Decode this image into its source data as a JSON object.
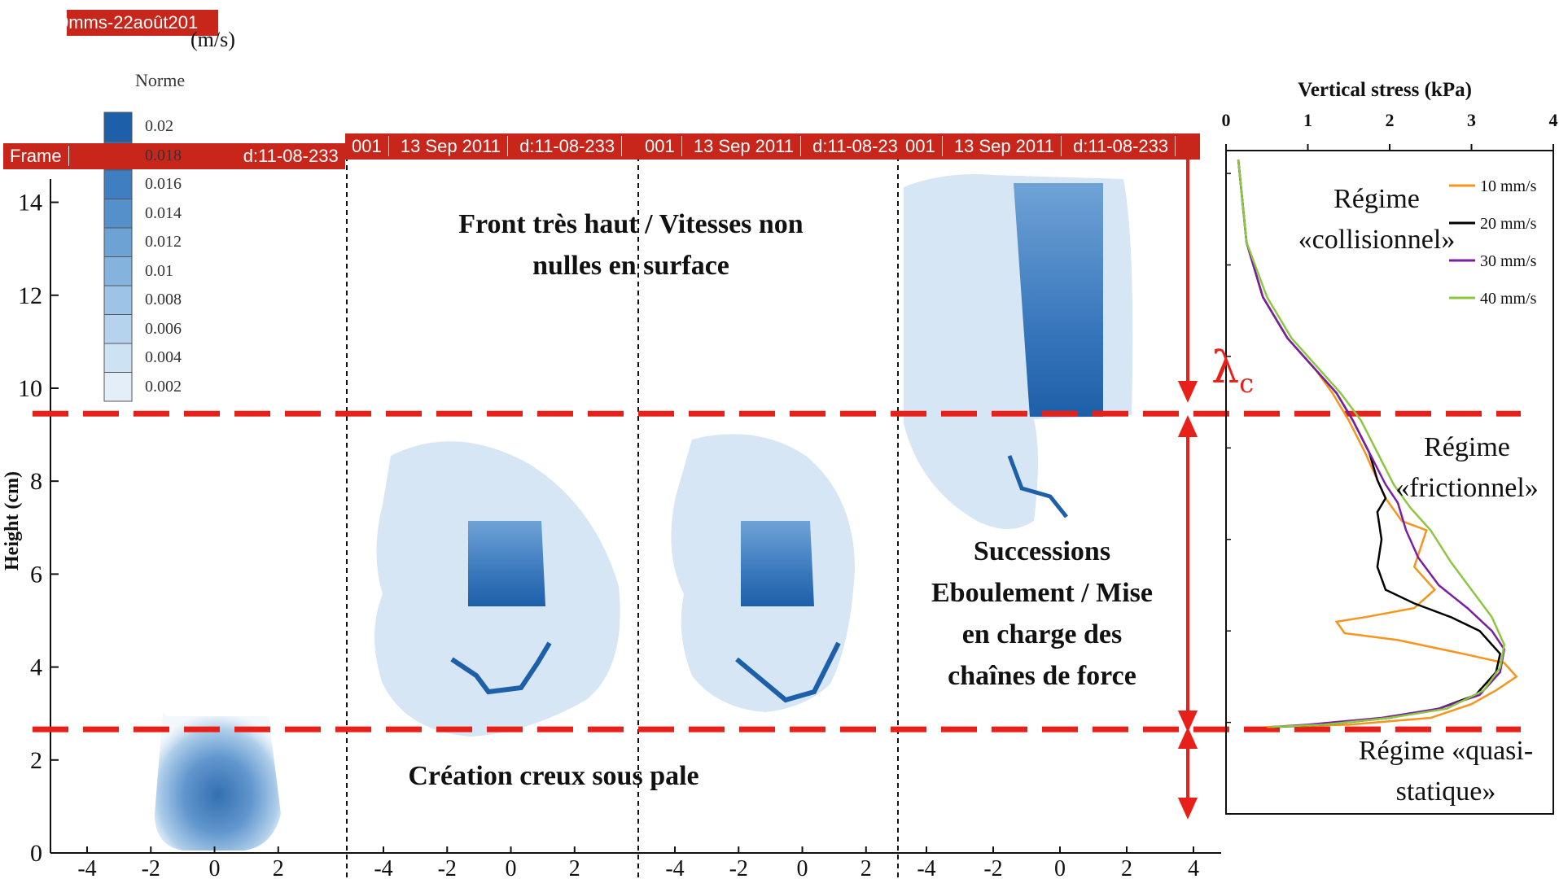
{
  "header": {
    "top_banner": "0mms-22août201",
    "unit": "(m/s)",
    "frame_banner_left": [
      "Frame",
      "d:11-08-233"
    ],
    "frame_banner_right": [
      "001",
      "13 Sep 2011",
      "d:11-08-233"
    ]
  },
  "colorbar": {
    "title": "Norme",
    "labels": [
      "0.02",
      "0.018",
      "0.016",
      "0.014",
      "0.012",
      "0.01",
      "0.008",
      "0.006",
      "0.004",
      "0.002"
    ],
    "colors": [
      "#1d5fa8",
      "#2e6fb5",
      "#3f7ec0",
      "#5590ca",
      "#6ca2d4",
      "#84b4dd",
      "#9dc4e5",
      "#b5d3ec",
      "#cde2f3",
      "#e3eef9"
    ]
  },
  "annotations": {
    "top": "Front très haut / Vitesses non nulles en surface",
    "middle": "Successions Eboulement / Mise en charge des chaînes de force",
    "bottom": "Création creux sous pale",
    "lambda": "λ",
    "lambda_sub": "c"
  },
  "regimes": {
    "collisional": "Régime «collisionnel»",
    "frictional": "Régime «frictionnel»",
    "quasi_static": "Régime «quasi-statique»"
  },
  "colors": {
    "red": "#e8201a",
    "blue_dark": "#1d5fa8",
    "blue_light": "#cfe2f3",
    "orange": "#f7941d",
    "black": "#000000",
    "purple": "#7b1fa2",
    "green": "#8dc63f"
  },
  "chart_data": [
    {
      "type": "heatmap",
      "ylabel": "Height (cm)",
      "ylim": [
        0,
        14.5
      ],
      "yticks": [
        "0",
        "2",
        "4",
        "6",
        "8",
        "10",
        "12",
        "14"
      ],
      "panel_xticks": [
        [
          "-4",
          "-2",
          "0",
          "2"
        ],
        [
          "-4",
          "-2",
          "0",
          "2"
        ],
        [
          "-4",
          "-2",
          "0",
          "2"
        ],
        [
          "-4",
          "-2",
          "0",
          "2",
          "4"
        ]
      ],
      "threshold_heights_cm": [
        9.4,
        2.8
      ]
    },
    {
      "type": "line",
      "xlabel": "Vertical stress (kPa)",
      "xlim": [
        0,
        4
      ],
      "xticks": [
        "0",
        "1",
        "2",
        "3",
        "4"
      ],
      "ylim": [
        0,
        14.5
      ],
      "legend_position": "top-right",
      "series": [
        {
          "name": "10 mm/s",
          "color": "#f7941d",
          "points": [
            [
              0.15,
              14.3
            ],
            [
              0.25,
              12.5
            ],
            [
              0.45,
              11.3
            ],
            [
              0.75,
              10.4
            ],
            [
              1.1,
              9.7
            ],
            [
              1.3,
              9.2
            ],
            [
              1.5,
              8.6
            ],
            [
              1.7,
              7.9
            ],
            [
              1.85,
              7.3
            ],
            [
              1.95,
              6.9
            ],
            [
              2.15,
              6.4
            ],
            [
              2.45,
              6.2
            ],
            [
              2.3,
              5.4
            ],
            [
              2.55,
              4.9
            ],
            [
              2.3,
              4.5
            ],
            [
              1.7,
              4.3
            ],
            [
              1.35,
              4.2
            ],
            [
              1.45,
              3.95
            ],
            [
              2.1,
              3.8
            ],
            [
              2.9,
              3.5
            ],
            [
              3.4,
              3.3
            ],
            [
              3.55,
              3.0
            ],
            [
              3.3,
              2.7
            ],
            [
              3.0,
              2.4
            ],
            [
              2.5,
              2.1
            ],
            [
              1.5,
              1.95
            ],
            [
              0.5,
              1.9
            ]
          ]
        },
        {
          "name": "20 mm/s",
          "color": "#000000",
          "points": [
            [
              0.15,
              14.3
            ],
            [
              0.25,
              12.5
            ],
            [
              0.45,
              11.3
            ],
            [
              0.75,
              10.4
            ],
            [
              1.1,
              9.7
            ],
            [
              1.35,
              9.2
            ],
            [
              1.55,
              8.6
            ],
            [
              1.75,
              7.9
            ],
            [
              1.85,
              7.3
            ],
            [
              1.95,
              6.9
            ],
            [
              1.85,
              6.6
            ],
            [
              1.9,
              6.0
            ],
            [
              1.85,
              5.4
            ],
            [
              1.95,
              4.9
            ],
            [
              2.3,
              4.6
            ],
            [
              2.75,
              4.3
            ],
            [
              3.1,
              4.0
            ],
            [
              3.35,
              3.5
            ],
            [
              3.3,
              3.1
            ],
            [
              3.05,
              2.6
            ],
            [
              2.6,
              2.3
            ],
            [
              2.0,
              2.1
            ],
            [
              1.2,
              1.95
            ],
            [
              0.6,
              1.9
            ]
          ]
        },
        {
          "name": "30 mm/s",
          "color": "#7b1fa2",
          "points": [
            [
              0.15,
              14.3
            ],
            [
              0.25,
              12.5
            ],
            [
              0.45,
              11.3
            ],
            [
              0.75,
              10.4
            ],
            [
              1.1,
              9.7
            ],
            [
              1.35,
              9.2
            ],
            [
              1.55,
              8.6
            ],
            [
              1.75,
              7.9
            ],
            [
              1.95,
              7.2
            ],
            [
              2.1,
              6.8
            ],
            [
              2.2,
              6.2
            ],
            [
              2.35,
              5.6
            ],
            [
              2.6,
              5.0
            ],
            [
              2.95,
              4.5
            ],
            [
              3.25,
              4.0
            ],
            [
              3.4,
              3.6
            ],
            [
              3.35,
              3.1
            ],
            [
              3.1,
              2.6
            ],
            [
              2.6,
              2.3
            ],
            [
              1.9,
              2.1
            ],
            [
              1.0,
              1.95
            ],
            [
              0.55,
              1.9
            ]
          ]
        },
        {
          "name": "40 mm/s",
          "color": "#8dc63f",
          "points": [
            [
              0.15,
              14.3
            ],
            [
              0.25,
              12.5
            ],
            [
              0.5,
              11.3
            ],
            [
              0.8,
              10.4
            ],
            [
              1.15,
              9.7
            ],
            [
              1.4,
              9.2
            ],
            [
              1.65,
              8.6
            ],
            [
              1.85,
              7.9
            ],
            [
              2.05,
              7.2
            ],
            [
              2.25,
              6.7
            ],
            [
              2.5,
              6.2
            ],
            [
              2.75,
              5.5
            ],
            [
              3.0,
              4.9
            ],
            [
              3.25,
              4.3
            ],
            [
              3.4,
              3.7
            ],
            [
              3.35,
              3.2
            ],
            [
              3.15,
              2.7
            ],
            [
              2.7,
              2.3
            ],
            [
              2.0,
              2.1
            ],
            [
              1.2,
              1.95
            ],
            [
              0.55,
              1.9
            ]
          ]
        }
      ]
    }
  ]
}
